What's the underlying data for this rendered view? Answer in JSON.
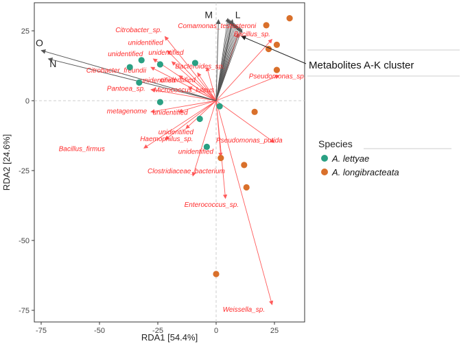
{
  "chart_data": {
    "type": "scatter",
    "title": "",
    "xlabel": "RDA1 [54.4%]",
    "ylabel": "RDA2 [24.6%]",
    "xlim": [
      -80,
      38
    ],
    "ylim": [
      -77,
      33
    ],
    "xticks": [
      -75,
      -50,
      -25,
      0,
      25
    ],
    "yticks": [
      -75,
      -50,
      -25,
      0,
      25
    ],
    "legend": {
      "title": "Species",
      "position": "right",
      "entries": [
        {
          "label": "A. lettyae",
          "color": "#2aa083"
        },
        {
          "label": "A. longibracteata",
          "color": "#d9702b"
        }
      ]
    },
    "series": [
      {
        "name": "A. lettyae",
        "color": "#2aa083",
        "points": [
          {
            "x": -32,
            "y": 14.5
          },
          {
            "x": -37,
            "y": 12
          },
          {
            "x": -24,
            "y": 13
          },
          {
            "x": -9,
            "y": 13.5
          },
          {
            "x": -33,
            "y": 6.5
          },
          {
            "x": -24,
            "y": -0.5
          },
          {
            "x": 1.5,
            "y": -2
          },
          {
            "x": -7,
            "y": -6.5
          },
          {
            "x": -4,
            "y": -16.5
          }
        ]
      },
      {
        "name": "A. longibracteata",
        "color": "#d9702b",
        "points": [
          {
            "x": 31.5,
            "y": 29.5
          },
          {
            "x": 21.5,
            "y": 27
          },
          {
            "x": 26,
            "y": 20
          },
          {
            "x": 22.5,
            "y": 18.5
          },
          {
            "x": 26,
            "y": 11
          },
          {
            "x": 16.5,
            "y": -4
          },
          {
            "x": 2,
            "y": -20.5
          },
          {
            "x": 12,
            "y": -23
          },
          {
            "x": 13,
            "y": -31
          },
          {
            "x": 0,
            "y": -62
          }
        ]
      }
    ],
    "taxa_vectors": [
      {
        "label": "Comamonas_testosteroni",
        "x": 9.5,
        "y": 24
      },
      {
        "label": "Citrobacter_sp.",
        "x": -22,
        "y": 23
      },
      {
        "label": "Bacillus_sp.",
        "x": 24,
        "y": 22
      },
      {
        "label": "unidentified",
        "x": -21,
        "y": 18
      },
      {
        "label": "unidentified",
        "x": -27,
        "y": 15
      },
      {
        "label": "unidentified",
        "x": -19,
        "y": 14
      },
      {
        "label": "Citrobacter_freundii",
        "x": -28,
        "y": 12
      },
      {
        "label": "Bacteroides_sp.",
        "x": -4,
        "y": 12
      },
      {
        "label": "unidentified",
        "x": -16,
        "y": 9
      },
      {
        "label": "unidentified",
        "x": -8,
        "y": 10
      },
      {
        "label": "Pseudomonas_sp.",
        "x": 27,
        "y": 9
      },
      {
        "label": "Pantoea_sp.",
        "x": -28,
        "y": 4
      },
      {
        "label": "Micrococcus_luteus",
        "x": -12,
        "y": 5
      },
      {
        "label": "metagenome",
        "x": -28,
        "y": -4
      },
      {
        "label": "unidentified",
        "x": -16,
        "y": -4
      },
      {
        "label": "unidentified",
        "x": -13,
        "y": -10
      },
      {
        "label": "Haemophilus_sp.",
        "x": -22,
        "y": -14
      },
      {
        "label": "Pseudomonas_putida",
        "x": 25,
        "y": -15
      },
      {
        "label": "Bacillus_firmus",
        "x": -31,
        "y": -17
      },
      {
        "label": "unidentified",
        "x": 2,
        "y": -20
      },
      {
        "label": "Clostridiaceae_bacterium",
        "x": -10,
        "y": -27
      },
      {
        "label": "Enterococcus_sp.",
        "x": 4,
        "y": -35
      },
      {
        "label": "Weissella_sp.",
        "x": 24,
        "y": -73
      }
    ],
    "metabolite_vectors": [
      {
        "label": "M",
        "x": 1,
        "y": 29
      },
      {
        "label": "L",
        "x": 7,
        "y": 29
      },
      {
        "label": "O",
        "x": -75,
        "y": 18
      },
      {
        "label": "N",
        "x": -72,
        "y": 15
      }
    ],
    "annotation": "Metabolites A-K cluster"
  }
}
